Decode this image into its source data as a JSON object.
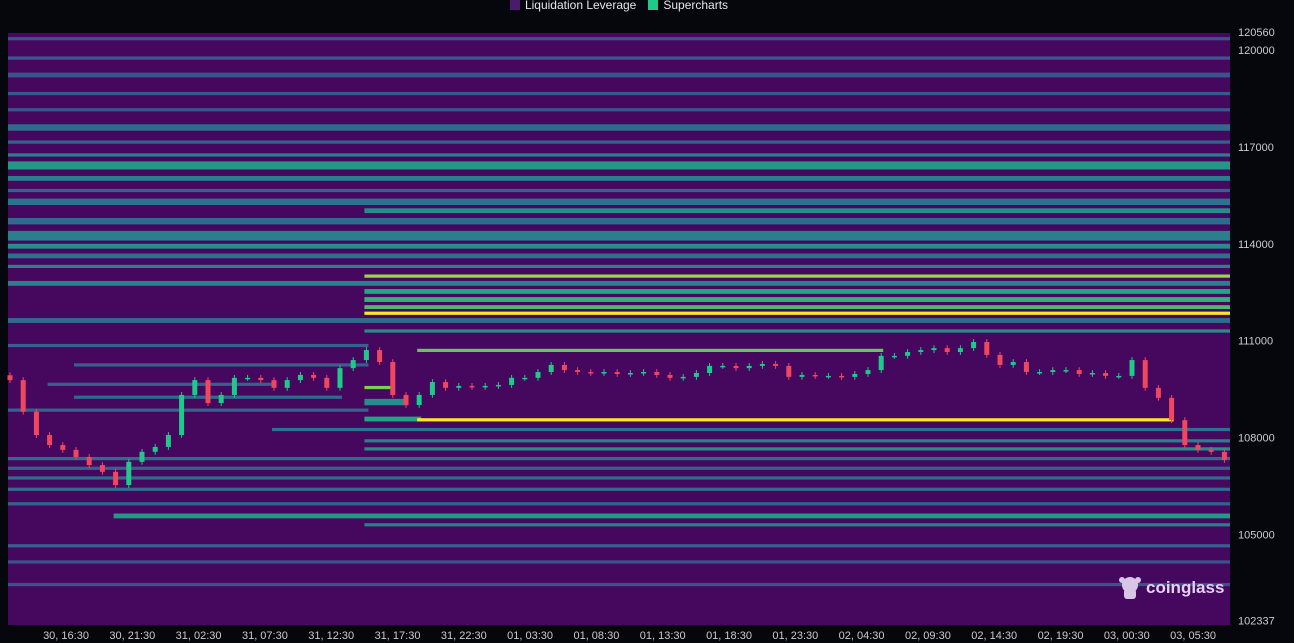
{
  "legend": [
    {
      "label": "Liquidation Leverage",
      "color": "#4a1a6b"
    },
    {
      "label": "Supercharts",
      "color": "#1fc98a"
    }
  ],
  "watermark": "coinglass",
  "colors": {
    "background": "#46075f",
    "up": "#1fc98a",
    "down": "#f0465e",
    "colormap": [
      "#46075f",
      "#3b528b",
      "#2c728e",
      "#21a585",
      "#7ad151",
      "#fde725"
    ]
  },
  "chart_data": {
    "type": "heatmap",
    "title": "",
    "y_axis": {
      "position": "right",
      "min": 102337,
      "max": 120560,
      "ticks": [
        120560,
        120000,
        117000,
        114000,
        111000,
        108000,
        105000,
        102337
      ]
    },
    "x_axis": {
      "ticks": [
        "30, 16:30",
        "30, 21:30",
        "31, 02:30",
        "31, 07:30",
        "31, 12:30",
        "31, 17:30",
        "31, 22:30",
        "01, 03:30",
        "01, 08:30",
        "01, 13:30",
        "01, 18:30",
        "01, 23:30",
        "02, 04:30",
        "02, 09:30",
        "02, 14:30",
        "02, 19:30",
        "03, 00:30",
        "03, 05:30"
      ]
    },
    "candles_close": [
      109780,
      108800,
      108080,
      107770,
      107620,
      107400,
      107150,
      106940,
      106530,
      107250,
      107560,
      107710,
      108080,
      109320,
      109780,
      109070,
      109320,
      109850,
      109850,
      109780,
      109540,
      109780,
      109940,
      109850,
      109540,
      110150,
      110400,
      110710,
      110340,
      109320,
      109010,
      109320,
      109720,
      109540,
      109600,
      109570,
      109600,
      109630,
      109850,
      109850,
      110030,
      110250,
      110090,
      110030,
      110000,
      110030,
      109970,
      110000,
      110030,
      109940,
      109850,
      109880,
      110000,
      110220,
      110220,
      110150,
      110220,
      110280,
      110220,
      109880,
      109940,
      109910,
      109910,
      109880,
      109970,
      110090,
      110530,
      110530,
      110650,
      110710,
      110770,
      110650,
      110770,
      110960,
      110560,
      110250,
      110340,
      110030,
      110030,
      110090,
      110090,
      109970,
      110000,
      109910,
      109910,
      110400,
      109540,
      109230,
      108540,
      107770,
      107620,
      107560,
      107310
    ],
    "liquidation_bands": [
      {
        "high": 120400,
        "low": 120300,
        "intensity": 0.2,
        "from": 0,
        "to": 92
      },
      {
        "high": 119800,
        "low": 119700,
        "intensity": 0.25,
        "from": 0,
        "to": 92
      },
      {
        "high": 119300,
        "low": 119150,
        "intensity": 0.2,
        "from": 0,
        "to": 92
      },
      {
        "high": 118700,
        "low": 118600,
        "intensity": 0.25,
        "from": 0,
        "to": 92
      },
      {
        "high": 118200,
        "low": 118100,
        "intensity": 0.22,
        "from": 0,
        "to": 92
      },
      {
        "high": 117700,
        "low": 117500,
        "intensity": 0.35,
        "from": 0,
        "to": 92
      },
      {
        "high": 117200,
        "low": 117100,
        "intensity": 0.3,
        "from": 0,
        "to": 92
      },
      {
        "high": 116800,
        "low": 116700,
        "intensity": 0.45,
        "from": 0,
        "to": 92
      },
      {
        "high": 116550,
        "low": 116300,
        "intensity": 0.55,
        "from": 0,
        "to": 92
      },
      {
        "high": 116100,
        "low": 115950,
        "intensity": 0.45,
        "from": 0,
        "to": 92
      },
      {
        "high": 115700,
        "low": 115600,
        "intensity": 0.3,
        "from": 0,
        "to": 92
      },
      {
        "high": 115400,
        "low": 115200,
        "intensity": 0.4,
        "from": 0,
        "to": 92
      },
      {
        "high": 115100,
        "low": 114950,
        "intensity": 0.5,
        "from": 27,
        "to": 92
      },
      {
        "high": 114800,
        "low": 114600,
        "intensity": 0.35,
        "from": 0,
        "to": 92
      },
      {
        "high": 114400,
        "low": 114100,
        "intensity": 0.45,
        "from": 0,
        "to": 92
      },
      {
        "high": 114000,
        "low": 113850,
        "intensity": 0.5,
        "from": 0,
        "to": 92
      },
      {
        "high": 113700,
        "low": 113550,
        "intensity": 0.4,
        "from": 0,
        "to": 92
      },
      {
        "high": 113350,
        "low": 113250,
        "intensity": 0.45,
        "from": 0,
        "to": 92
      },
      {
        "high": 113050,
        "low": 112950,
        "intensity": 0.85,
        "from": 27,
        "to": 92
      },
      {
        "high": 112850,
        "low": 112700,
        "intensity": 0.45,
        "from": 0,
        "to": 92
      },
      {
        "high": 112600,
        "low": 112450,
        "intensity": 0.6,
        "from": 27,
        "to": 92
      },
      {
        "high": 112350,
        "low": 112200,
        "intensity": 0.65,
        "from": 27,
        "to": 92
      },
      {
        "high": 112100,
        "low": 111980,
        "intensity": 0.7,
        "from": 27,
        "to": 92
      },
      {
        "high": 111900,
        "low": 111800,
        "intensity": 1.0,
        "from": 27,
        "to": 92
      },
      {
        "high": 111700,
        "low": 111550,
        "intensity": 0.35,
        "from": 0,
        "to": 92
      },
      {
        "high": 111350,
        "low": 111250,
        "intensity": 0.5,
        "from": 27,
        "to": 92
      },
      {
        "high": 110900,
        "low": 110800,
        "intensity": 0.3,
        "from": 0,
        "to": 27
      },
      {
        "high": 110750,
        "low": 110650,
        "intensity": 0.75,
        "from": 31,
        "to": 66
      },
      {
        "high": 110300,
        "low": 110200,
        "intensity": 0.3,
        "from": 5,
        "to": 27
      },
      {
        "high": 109700,
        "low": 109600,
        "intensity": 0.3,
        "from": 3,
        "to": 20
      },
      {
        "high": 109600,
        "low": 109500,
        "intensity": 0.8,
        "from": 27,
        "to": 29
      },
      {
        "high": 109300,
        "low": 109200,
        "intensity": 0.35,
        "from": 5,
        "to": 25
      },
      {
        "high": 109200,
        "low": 109000,
        "intensity": 0.5,
        "from": 27,
        "to": 30
      },
      {
        "high": 108900,
        "low": 108800,
        "intensity": 0.3,
        "from": 0,
        "to": 27
      },
      {
        "high": 108650,
        "low": 108500,
        "intensity": 0.6,
        "from": 27,
        "to": 31
      },
      {
        "high": 108600,
        "low": 108500,
        "intensity": 1.0,
        "from": 31,
        "to": 88
      },
      {
        "high": 108300,
        "low": 108200,
        "intensity": 0.4,
        "from": 20,
        "to": 92
      },
      {
        "high": 107950,
        "low": 107850,
        "intensity": 0.45,
        "from": 27,
        "to": 92
      },
      {
        "high": 107700,
        "low": 107600,
        "intensity": 0.5,
        "from": 27,
        "to": 92
      },
      {
        "high": 107400,
        "low": 107300,
        "intensity": 0.35,
        "from": 0,
        "to": 92
      },
      {
        "high": 107100,
        "low": 107000,
        "intensity": 0.3,
        "from": 0,
        "to": 92
      },
      {
        "high": 106800,
        "low": 106700,
        "intensity": 0.35,
        "from": 0,
        "to": 92
      },
      {
        "high": 106450,
        "low": 106350,
        "intensity": 0.35,
        "from": 0,
        "to": 92
      },
      {
        "high": 106000,
        "low": 105900,
        "intensity": 0.3,
        "from": 0,
        "to": 92
      },
      {
        "high": 105650,
        "low": 105500,
        "intensity": 0.55,
        "from": 8,
        "to": 92
      },
      {
        "high": 105350,
        "low": 105250,
        "intensity": 0.45,
        "from": 27,
        "to": 92
      },
      {
        "high": 104700,
        "low": 104600,
        "intensity": 0.3,
        "from": 0,
        "to": 92
      },
      {
        "high": 104200,
        "low": 104100,
        "intensity": 0.2,
        "from": 0,
        "to": 92
      },
      {
        "high": 103500,
        "low": 103400,
        "intensity": 0.2,
        "from": 0,
        "to": 92
      }
    ]
  }
}
